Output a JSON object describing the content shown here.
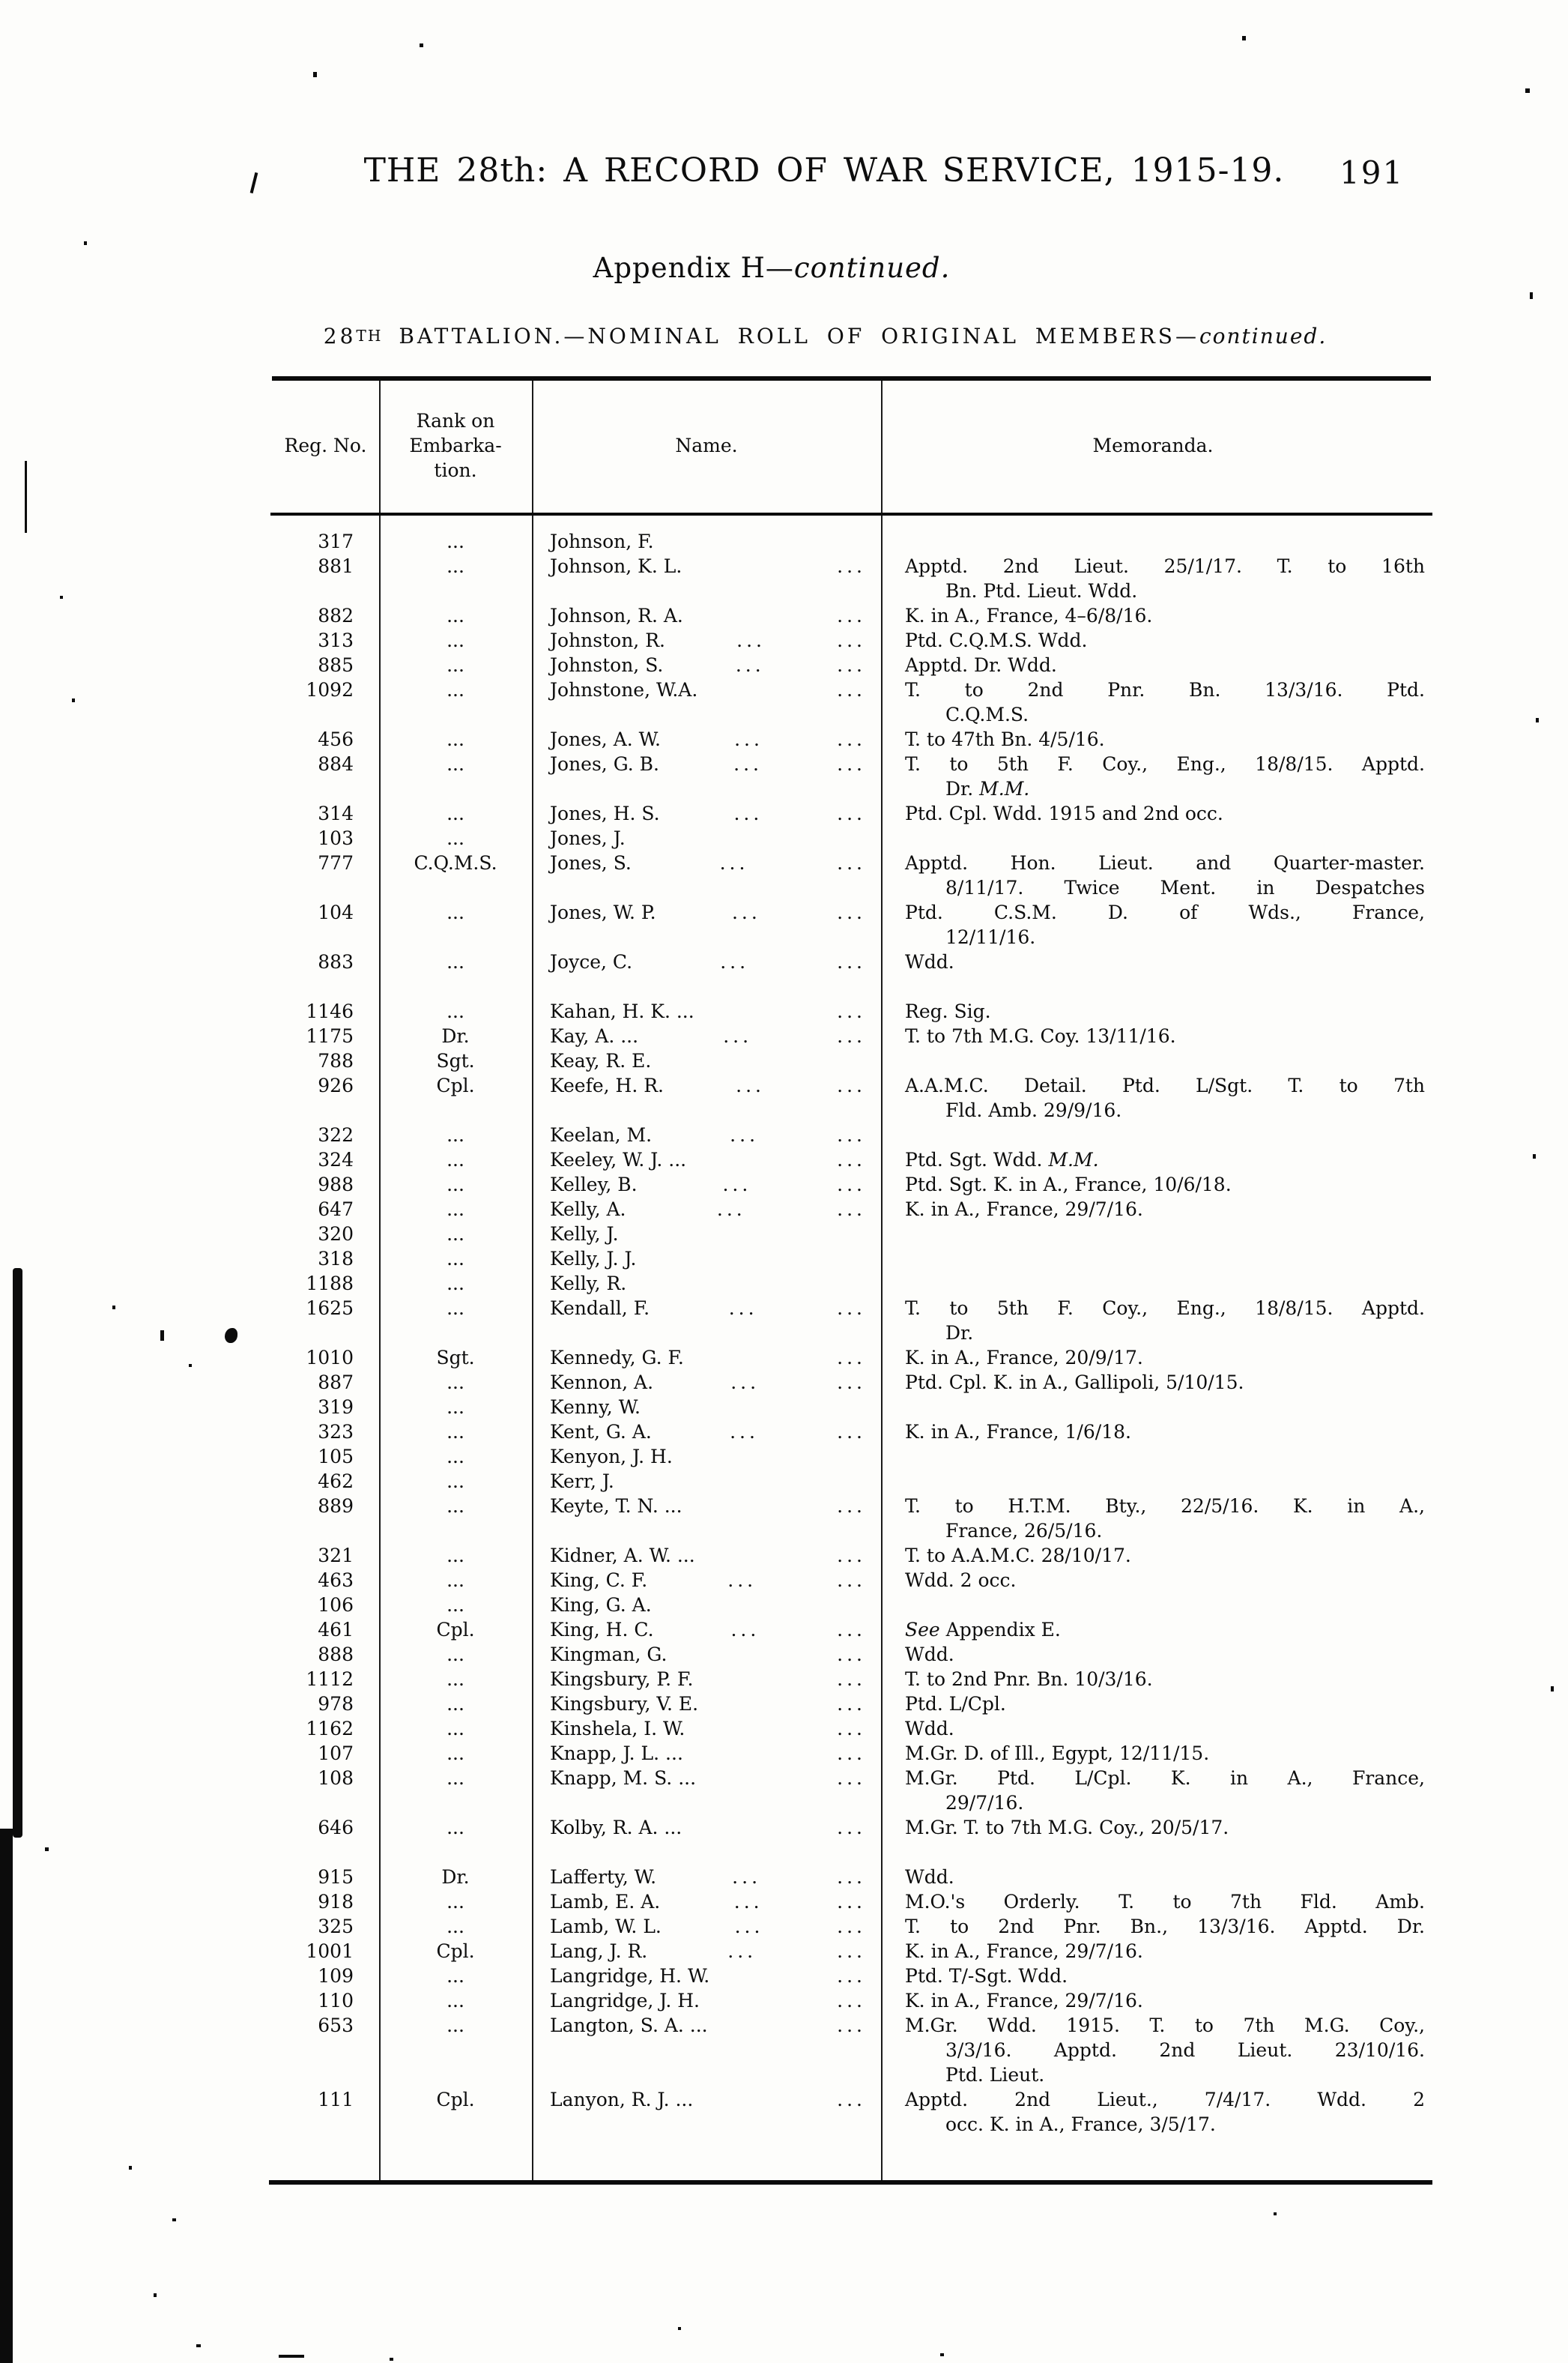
{
  "colors": {
    "paper": "#fdfdfb",
    "ink": "#0d0d0d"
  },
  "page": {
    "title": "THE 28th: A RECORD OF WAR SERVICE, 1915-19.",
    "page_number": "191",
    "appendix_heading": {
      "main": "Appendix H—",
      "continued": "continued."
    },
    "section_heading": {
      "num": "28",
      "ordinal": "TH",
      "main": " BATTALION.—NOMINAL ROLL OF ORIGINAL MEMBERS—",
      "continued": "continued."
    }
  },
  "table": {
    "headers": {
      "reg_no": "Reg. No.",
      "rank": "Rank on Embarka-tion.",
      "name": "Name.",
      "memoranda": "Memoranda."
    },
    "rows": [
      {
        "reg_no": "317",
        "rank": "...",
        "name": "Johnson, F.",
        "dots": 0,
        "memo": []
      },
      {
        "reg_no": "881",
        "rank": "...",
        "name": "Johnson, K. L.",
        "dots": 1,
        "memo": [
          {
            "t": "Apptd. 2nd Lieut. 25/1/17.  T. to 16th",
            "j": true
          },
          {
            "t": "Bn.  Ptd. Lieut.  Wdd."
          }
        ]
      },
      {
        "reg_no": "882",
        "rank": "...",
        "name": "Johnson, R. A.",
        "dots": 1,
        "memo": [
          {
            "t": "K. in A., France, 4–6/8/16."
          }
        ]
      },
      {
        "reg_no": "313",
        "rank": "...",
        "name": "Johnston, R.",
        "dots": 2,
        "memo": [
          {
            "t": "Ptd. C.Q.M.S.  Wdd."
          }
        ]
      },
      {
        "reg_no": "885",
        "rank": "...",
        "name": "Johnston, S.",
        "dots": 2,
        "memo": [
          {
            "t": "Apptd. Dr.  Wdd."
          }
        ]
      },
      {
        "reg_no": "1092",
        "rank": "...",
        "name": "Johnstone, W.A.",
        "dots": 1,
        "memo": [
          {
            "t": "T. to 2nd Pnr. Bn. 13/3/16. Ptd.",
            "j": true
          },
          {
            "t": "C.Q.M.S."
          }
        ]
      },
      {
        "reg_no": "456",
        "rank": "...",
        "name": "Jones, A. W.",
        "dots": 2,
        "memo": [
          {
            "t": "T. to 47th Bn. 4/5/16."
          }
        ]
      },
      {
        "reg_no": "884",
        "rank": "...",
        "name": "Jones, G. B.",
        "dots": 2,
        "memo": [
          {
            "t": "T. to 5th F. Coy., Eng., 18/8/15.  Apptd.",
            "j": true
          },
          {
            "t": "Dr.  *M.M.*"
          }
        ]
      },
      {
        "reg_no": "314",
        "rank": "...",
        "name": "Jones, H. S.",
        "dots": 2,
        "memo": [
          {
            "t": "Ptd. Cpl.  Wdd. 1915 and 2nd occ."
          }
        ]
      },
      {
        "reg_no": "103",
        "rank": "...",
        "name": "Jones, J.",
        "dots": 0,
        "memo": []
      },
      {
        "reg_no": "777",
        "rank": "C.Q.M.S.",
        "name": "Jones, S.",
        "dots": 2,
        "memo": [
          {
            "t": "Apptd. Hon. Lieut. and Quarter-master.",
            "j": true
          },
          {
            "t": "8/11/17.  Twice Ment. in Despatches",
            "j": true
          }
        ]
      },
      {
        "reg_no": "104",
        "rank": "...",
        "name": "Jones, W. P.",
        "dots": 2,
        "memo": [
          {
            "t": "Ptd. C.S.M. D. of Wds., France,",
            "j": true
          },
          {
            "t": "12/11/16."
          }
        ]
      },
      {
        "reg_no": "883",
        "rank": "...",
        "name": "Joyce, C.",
        "dots": 2,
        "memo": [
          {
            "t": "Wdd."
          }
        ]
      },
      {
        "reg_no": "1146",
        "rank": "...",
        "name": "Kahan, H. K. ...",
        "dots": 1,
        "gap": true,
        "memo": [
          {
            "t": "Reg. Sig."
          }
        ]
      },
      {
        "reg_no": "1175",
        "rank": "Dr.",
        "name": "Kay, A. ...",
        "dots": 2,
        "memo": [
          {
            "t": "T. to 7th M.G. Coy. 13/11/16."
          }
        ]
      },
      {
        "reg_no": "788",
        "rank": "Sgt.",
        "name": "Keay, R. E.",
        "dots": 0,
        "memo": []
      },
      {
        "reg_no": "926",
        "rank": "Cpl.",
        "name": "Keefe, H. R.",
        "dots": 2,
        "memo": [
          {
            "t": "A.A.M.C. Detail.  Ptd. L/Sgt.  T. to 7th",
            "j": true
          },
          {
            "t": "Fld. Amb. 29/9/16."
          }
        ]
      },
      {
        "reg_no": "322",
        "rank": "...",
        "name": "Keelan, M.",
        "dots": 2,
        "memo": []
      },
      {
        "reg_no": "324",
        "rank": "...",
        "name": "Keeley, W. J. ...",
        "dots": 1,
        "memo": [
          {
            "t": "Ptd. Sgt.  Wdd.  *M.M.*"
          }
        ]
      },
      {
        "reg_no": "988",
        "rank": "...",
        "name": "Kelley, B.",
        "dots": 2,
        "memo": [
          {
            "t": "Ptd. Sgt.  K. in A., France, 10/6/18."
          }
        ]
      },
      {
        "reg_no": "647",
        "rank": "...",
        "name": "Kelly, A.",
        "dots": 2,
        "memo": [
          {
            "t": "K. in A., France, 29/7/16."
          }
        ]
      },
      {
        "reg_no": "320",
        "rank": "...",
        "name": "Kelly, J.",
        "dots": 0,
        "memo": []
      },
      {
        "reg_no": "318",
        "rank": "...",
        "name": "Kelly, J. J.",
        "dots": 0,
        "memo": []
      },
      {
        "reg_no": "1188",
        "rank": "...",
        "name": "Kelly, R.",
        "dots": 0,
        "memo": []
      },
      {
        "reg_no": "1625",
        "rank": "...",
        "name": "Kendall, F.",
        "dots": 2,
        "memo": [
          {
            "t": "T. to 5th F. Coy., Eng., 18/8/15.  Apptd.",
            "j": true
          },
          {
            "t": "Dr."
          }
        ]
      },
      {
        "reg_no": "1010",
        "rank": "Sgt.",
        "name": "Kennedy, G. F.",
        "dots": 1,
        "memo": [
          {
            "t": "K. in A., France, 20/9/17."
          }
        ]
      },
      {
        "reg_no": "887",
        "rank": "...",
        "name": "Kennon, A.",
        "dots": 2,
        "memo": [
          {
            "t": "Ptd. Cpl.  K. in A., Gallipoli, 5/10/15."
          }
        ]
      },
      {
        "reg_no": "319",
        "rank": "...",
        "name": "Kenny, W.",
        "dots": 0,
        "memo": []
      },
      {
        "reg_no": "323",
        "rank": "...",
        "name": "Kent, G. A.",
        "dots": 2,
        "memo": [
          {
            "t": "K. in A., France, 1/6/18."
          }
        ]
      },
      {
        "reg_no": "105",
        "rank": "...",
        "name": "Kenyon, J. H.",
        "dots": 0,
        "memo": []
      },
      {
        "reg_no": "462",
        "rank": "...",
        "name": "Kerr, J.",
        "dots": 0,
        "memo": []
      },
      {
        "reg_no": "889",
        "rank": "...",
        "name": "Keyte, T. N. ...",
        "dots": 1,
        "memo": [
          {
            "t": "T. to H.T.M. Bty., 22/5/16.  K. in A.,",
            "j": true
          },
          {
            "t": "France, 26/5/16."
          }
        ]
      },
      {
        "reg_no": "321",
        "rank": "...",
        "name": "Kidner, A. W. ...",
        "dots": 1,
        "memo": [
          {
            "t": "T. to A.A.M.C. 28/10/17."
          }
        ]
      },
      {
        "reg_no": "463",
        "rank": "...",
        "name": "King, C. F.",
        "dots": 2,
        "memo": [
          {
            "t": "Wdd. 2 occ."
          }
        ]
      },
      {
        "reg_no": "106",
        "rank": "...",
        "name": "King, G. A.",
        "dots": 0,
        "memo": []
      },
      {
        "reg_no": "461",
        "rank": "Cpl.",
        "name": "King, H. C.",
        "dots": 2,
        "memo": [
          {
            "t": "*See* Appendix E."
          }
        ]
      },
      {
        "reg_no": "888",
        "rank": "...",
        "name": "Kingman, G.",
        "dots": 1,
        "memo": [
          {
            "t": "Wdd."
          }
        ]
      },
      {
        "reg_no": "1112",
        "rank": "...",
        "name": "Kingsbury, P. F.",
        "dots": 1,
        "memo": [
          {
            "t": "T. to 2nd Pnr. Bn. 10/3/16."
          }
        ]
      },
      {
        "reg_no": "978",
        "rank": "...",
        "name": "Kingsbury, V. E.",
        "dots": 1,
        "memo": [
          {
            "t": "Ptd. L/Cpl."
          }
        ]
      },
      {
        "reg_no": "1162",
        "rank": "...",
        "name": "Kinshela, I. W.",
        "dots": 1,
        "memo": [
          {
            "t": "Wdd."
          }
        ]
      },
      {
        "reg_no": "107",
        "rank": "...",
        "name": "Knapp, J. L. ...",
        "dots": 1,
        "memo": [
          {
            "t": "M.Gr.  D. of Ill., Egypt, 12/11/15."
          }
        ]
      },
      {
        "reg_no": "108",
        "rank": "...",
        "name": "Knapp, M. S. ...",
        "dots": 1,
        "memo": [
          {
            "t": "M.Gr.  Ptd. L/Cpl.  K. in A., France,",
            "j": true
          },
          {
            "t": "29/7/16."
          }
        ]
      },
      {
        "reg_no": "646",
        "rank": "...",
        "name": "Kolby, R. A. ...",
        "dots": 1,
        "memo": [
          {
            "t": "M.Gr.  T. to 7th M.G. Coy., 20/5/17."
          }
        ]
      },
      {
        "reg_no": "915",
        "rank": "Dr.",
        "name": "Lafferty, W.",
        "dots": 2,
        "gap": true,
        "memo": [
          {
            "t": "Wdd."
          }
        ]
      },
      {
        "reg_no": "918",
        "rank": "...",
        "name": "Lamb, E. A.",
        "dots": 2,
        "memo": [
          {
            "t": "M.O.'s Orderly.  T. to 7th Fld. Amb.",
            "j": true
          }
        ]
      },
      {
        "reg_no": "325",
        "rank": "...",
        "name": "Lamb, W. L.",
        "dots": 2,
        "memo": [
          {
            "t": "T. to 2nd Pnr. Bn., 13/3/16. Apptd. Dr.",
            "j": true
          }
        ]
      },
      {
        "reg_no": "1001",
        "rank": "Cpl.",
        "name": "Lang, J. R.",
        "dots": 2,
        "memo": [
          {
            "t": "K. in A., France, 29/7/16."
          }
        ]
      },
      {
        "reg_no": "109",
        "rank": "...",
        "name": "Langridge, H. W.",
        "dots": 1,
        "memo": [
          {
            "t": "Ptd. T/-Sgt.  Wdd."
          }
        ]
      },
      {
        "reg_no": "110",
        "rank": "...",
        "name": "Langridge, J. H.",
        "dots": 1,
        "memo": [
          {
            "t": "K. in A., France, 29/7/16."
          }
        ]
      },
      {
        "reg_no": "653",
        "rank": "...",
        "name": "Langton, S. A. ...",
        "dots": 1,
        "memo": [
          {
            "t": "M.Gr.  Wdd. 1915.  T. to 7th M.G. Coy.,",
            "j": true
          },
          {
            "t": "3/3/16.  Apptd. 2nd Lieut. 23/10/16.",
            "j": true
          },
          {
            "t": "Ptd. Lieut."
          }
        ]
      },
      {
        "reg_no": "111",
        "rank": "Cpl.",
        "name": "Lanyon, R. J. ...",
        "dots": 1,
        "memo": [
          {
            "t": "Apptd.  2nd  Lieut.,  7/4/17.   Wdd.  2",
            "j": true
          },
          {
            "t": "occ. K. in A., France, 3/5/17."
          }
        ]
      }
    ]
  }
}
